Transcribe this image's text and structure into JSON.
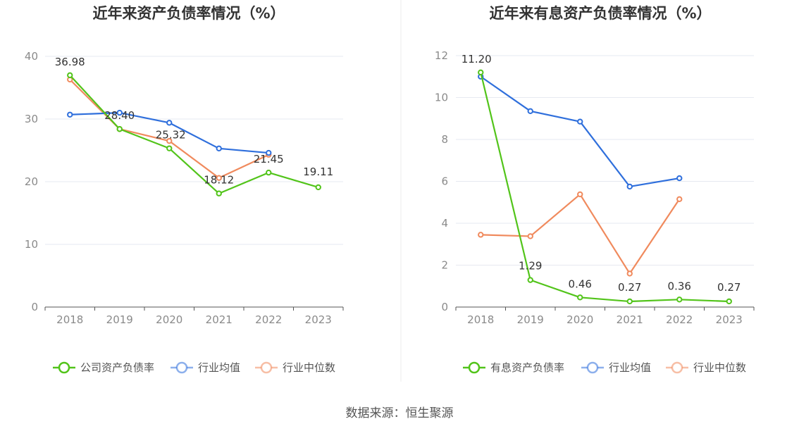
{
  "chart_data": [
    {
      "type": "line",
      "title": "近年来资产负债率情况（%）",
      "categories": [
        "2018",
        "2019",
        "2020",
        "2021",
        "2022",
        "2023"
      ],
      "ylim": [
        0,
        40
      ],
      "yticks": [
        0,
        10,
        20,
        30,
        40
      ],
      "grid": true,
      "legend_position": "bottom",
      "series": [
        {
          "name": "公司资产负债率",
          "color": "#52c41a",
          "values": [
            36.98,
            28.4,
            25.32,
            18.12,
            21.45,
            19.11
          ],
          "labels": [
            "36.98",
            "28.40",
            "25.32",
            "18.12",
            "21.45",
            "19.11"
          ]
        },
        {
          "name": "行业均值",
          "color": "#2f6fdc",
          "values": [
            30.7,
            31.0,
            29.4,
            25.3,
            24.6,
            null
          ],
          "labels": null
        },
        {
          "name": "行业中位数",
          "color": "#f08a5d",
          "values": [
            36.3,
            28.4,
            26.5,
            20.6,
            24.3,
            null
          ],
          "labels": null
        }
      ]
    },
    {
      "type": "line",
      "title": "近年来有息资产负债率情况（%）",
      "categories": [
        "2018",
        "2019",
        "2020",
        "2021",
        "2022",
        "2023"
      ],
      "ylim": [
        0,
        12
      ],
      "yticks": [
        0,
        2,
        4,
        6,
        8,
        10,
        12
      ],
      "grid": true,
      "legend_position": "bottom",
      "series": [
        {
          "name": "有息资产负债率",
          "color": "#52c41a",
          "values": [
            11.2,
            1.29,
            0.46,
            0.27,
            0.36,
            0.27
          ],
          "labels": [
            "11.20",
            "1.29",
            "0.46",
            "0.27",
            "0.36",
            "0.27"
          ]
        },
        {
          "name": "行业均值",
          "color": "#2f6fdc",
          "values": [
            11.0,
            9.35,
            8.85,
            5.75,
            6.15,
            null
          ],
          "labels": null
        },
        {
          "name": "行业中位数",
          "color": "#f08a5d",
          "values": [
            3.45,
            3.38,
            5.38,
            1.6,
            5.15,
            null
          ],
          "labels": null
        }
      ]
    }
  ],
  "footer": "数据来源：恒生聚源"
}
